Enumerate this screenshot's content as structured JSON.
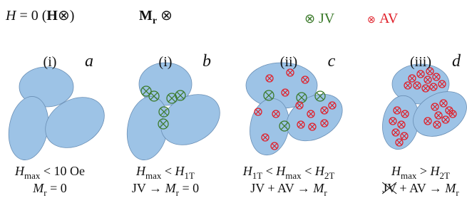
{
  "header": {
    "left": [
      "H",
      " = 0 (",
      "H",
      "⊗)"
    ],
    "middle": [
      "M",
      "r",
      " ⊗"
    ]
  },
  "legend": {
    "items": [
      {
        "symbol": "⊗",
        "label": "JV"
      },
      {
        "symbol": "⊗",
        "label": "AV"
      }
    ]
  },
  "panels": [
    {
      "stage": "(i)",
      "letter": "a",
      "caption": [
        [
          "H",
          "max",
          " < 10 Oe"
        ],
        [
          "M",
          "r",
          " = 0"
        ]
      ]
    },
    {
      "stage": "(i)",
      "letter": "b",
      "caption": [
        [
          "H",
          "max",
          " < ",
          "H",
          "1T"
        ],
        [
          "JV → ",
          "M",
          "r",
          " = 0"
        ]
      ]
    },
    {
      "stage": "(ii)",
      "letter": "c",
      "caption": [
        [
          "H",
          "1T",
          " < ",
          "H",
          "max",
          " < ",
          "H",
          "2T"
        ],
        [
          "JV + AV → ",
          "M",
          "r"
        ]
      ]
    },
    {
      "stage": "(iii)",
      "letter": "d",
      "caption": [
        [
          "H",
          "max",
          " > ",
          "H",
          "2T"
        ],
        [
          "JV",
          " + AV → ",
          "M",
          "r"
        ]
      ]
    }
  ]
}
